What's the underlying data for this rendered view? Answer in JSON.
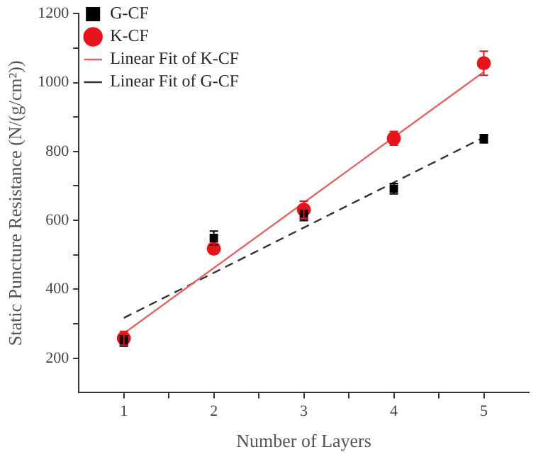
{
  "chart_data": {
    "type": "scatter",
    "xlabel": "Number of Layers",
    "ylabel": "Static Puncture Resistance (N/(g/cm²))",
    "xlim": [
      0.5,
      5.5
    ],
    "xticks": [
      1,
      {
        "value": 1.5,
        "label": null
      },
      2,
      {
        "value": 2.5,
        "label": null
      },
      3,
      {
        "value": 3.5,
        "label": null
      },
      4,
      {
        "value": 4.5,
        "label": null
      },
      5
    ],
    "ylim": [
      100,
      1200
    ],
    "yticks": [
      200,
      {
        "value": 300,
        "label": null
      },
      400,
      {
        "value": 500,
        "label": null
      },
      600,
      {
        "value": 700,
        "label": null
      },
      800,
      {
        "value": 900,
        "label": null
      },
      1000,
      {
        "value": 1100,
        "label": null
      },
      1200
    ],
    "grid": false,
    "legend": "top left",
    "series": [
      {
        "name": "G-CF",
        "marker": "square",
        "color": "#000000",
        "x": [
          1,
          2,
          3,
          4,
          5
        ],
        "values": [
          250,
          549,
          614,
          692,
          837
        ],
        "errors": [
          15,
          20,
          15,
          15,
          12
        ]
      },
      {
        "name": "K-CF",
        "marker": "circle",
        "color": "#e8141c",
        "x": [
          1,
          2,
          3,
          4,
          5
        ],
        "values": [
          258,
          518,
          631,
          838,
          1056
        ],
        "errors": [
          20,
          15,
          25,
          20,
          35
        ]
      },
      {
        "name": "Linear Fit of K-CF",
        "type": "line",
        "line_style": "solid",
        "color": "#e06666",
        "x": [
          1,
          5
        ],
        "values": [
          272,
          1031
        ]
      },
      {
        "name": "Linear Fit of G-CF",
        "type": "line",
        "line_style": "dashed",
        "color": "#333333",
        "x": [
          1,
          5
        ],
        "values": [
          317,
          841
        ]
      }
    ]
  }
}
